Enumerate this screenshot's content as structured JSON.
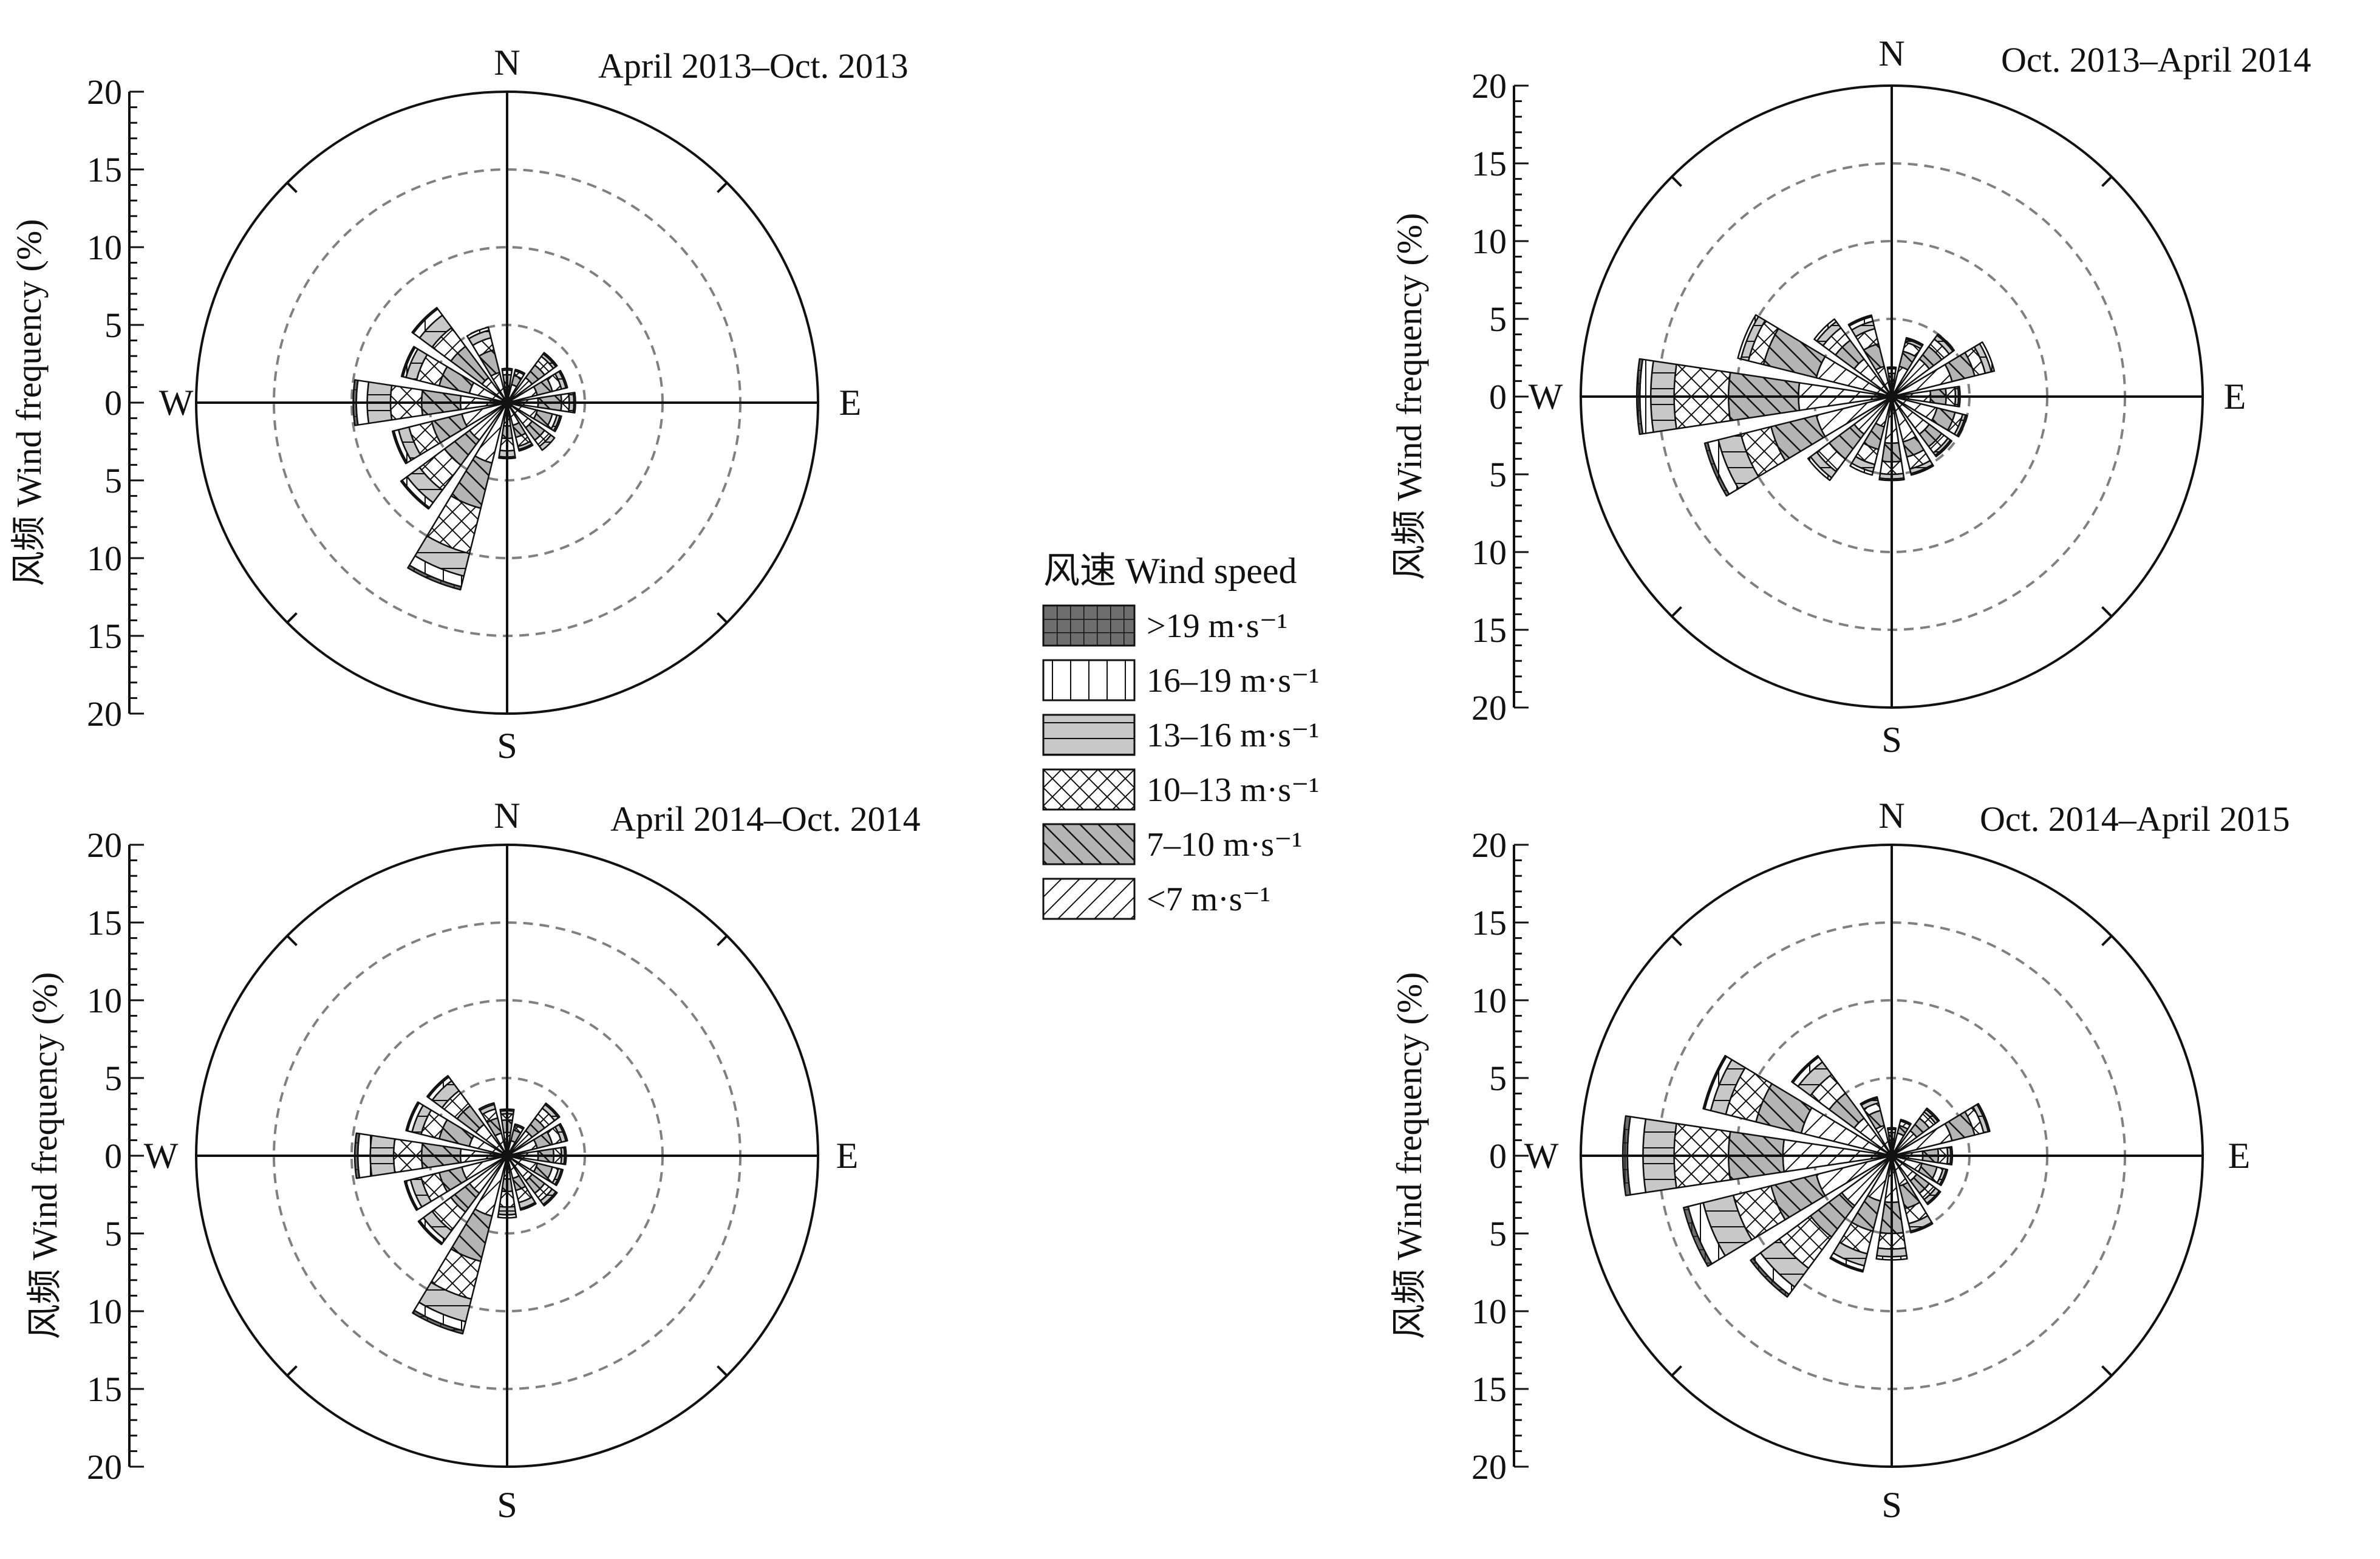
{
  "figure": {
    "legend": {
      "title": "风速 Wind speed",
      "items": [
        {
          "label": ">19 m·s⁻¹",
          "pattern": "grid",
          "color": "#6e6e6e"
        },
        {
          "label": "16–19 m·s⁻¹",
          "pattern": "vertical",
          "color": "#ffffff"
        },
        {
          "label": "13–16 m·s⁻¹",
          "pattern": "horizontal",
          "color": "#c8c8c8"
        },
        {
          "label": "10–13 m·s⁻¹",
          "pattern": "crosshatch",
          "color": "#ffffff"
        },
        {
          "label": "7–10 m·s⁻¹",
          "pattern": "backslash",
          "color": "#b4b4b4"
        },
        {
          "label": "<7 m·s⁻¹",
          "pattern": "slash",
          "color": "#ffffff"
        }
      ]
    },
    "colors": {
      "axis": "#111111",
      "grid": "#808080",
      "background": "#ffffff"
    }
  },
  "chart_data": [
    {
      "type": "wind-rose",
      "title": "April 2013–Oct. 2013",
      "ylabel": "风频 Wind frequency (%)",
      "compass": {
        "N": "N",
        "E": "E",
        "S": "S",
        "W": "W"
      },
      "r_max": 20,
      "grid_circles": [
        5,
        10,
        15
      ],
      "ticks_top": [
        "20",
        "15",
        "10",
        "5",
        "0"
      ],
      "ticks_bottom": [
        "5",
        "10",
        "15",
        "20"
      ],
      "directions": [
        0,
        22.5,
        45,
        67.5,
        90,
        112.5,
        135,
        157.5,
        180,
        202.5,
        225,
        247.5,
        270,
        292.5,
        315,
        337.5
      ],
      "speed_classes": [
        "<7",
        "7–10",
        "10–13",
        "13–16",
        "16–19",
        ">19"
      ],
      "frequencies": [
        [
          1.0,
          0.8,
          0.3,
          0.1,
          0.0,
          0.0
        ],
        [
          1.2,
          0.6,
          0.3,
          0.1,
          0.0,
          0.0
        ],
        [
          2.0,
          1.0,
          0.7,
          0.2,
          0.1,
          0.0
        ],
        [
          2.0,
          1.0,
          0.6,
          0.3,
          0.1,
          0.0
        ],
        [
          2.0,
          1.5,
          0.5,
          0.3,
          0.1,
          0.0
        ],
        [
          2.0,
          1.0,
          0.3,
          0.2,
          0.1,
          0.0
        ],
        [
          2.0,
          1.0,
          0.5,
          0.3,
          0.0,
          0.0
        ],
        [
          1.5,
          0.8,
          0.6,
          0.2,
          0.1,
          0.0
        ],
        [
          1.5,
          0.8,
          0.8,
          0.4,
          0.1,
          0.0
        ],
        [
          4.0,
          3.0,
          3.0,
          1.5,
          0.7,
          0.2
        ],
        [
          3.0,
          2.0,
          2.0,
          1.0,
          0.4,
          0.1
        ],
        [
          3.0,
          2.0,
          1.5,
          0.7,
          0.3,
          0.1
        ],
        [
          3.0,
          2.5,
          2.0,
          1.5,
          0.7,
          0.2
        ],
        [
          2.5,
          2.0,
          1.5,
          0.7,
          0.2,
          0.1
        ],
        [
          2.0,
          2.5,
          1.5,
          1.0,
          0.5,
          0.1
        ],
        [
          2.0,
          1.5,
          0.8,
          0.5,
          0.2,
          0.0
        ]
      ]
    },
    {
      "type": "wind-rose",
      "title": "Oct. 2013–April 2014",
      "ylabel": "风频 Wind frequency (%)",
      "compass": {
        "N": "N",
        "E": "E",
        "S": "S",
        "W": "W"
      },
      "r_max": 20,
      "grid_circles": [
        5,
        10,
        15
      ],
      "ticks_top": [
        "20",
        "15",
        "10",
        "5",
        "0"
      ],
      "ticks_bottom": [
        "5",
        "10",
        "15",
        "20"
      ],
      "directions": [
        0,
        22.5,
        45,
        67.5,
        90,
        112.5,
        135,
        157.5,
        180,
        202.5,
        225,
        247.5,
        270,
        292.5,
        315,
        337.5
      ],
      "speed_classes": [
        "<7",
        "7–10",
        "10–13",
        "13–16",
        "16–19",
        ">19"
      ],
      "frequencies": [
        [
          1.0,
          0.5,
          0.3,
          0.1,
          0.0,
          0.0
        ],
        [
          2.0,
          1.0,
          0.6,
          0.2,
          0.1,
          0.0
        ],
        [
          3.0,
          1.0,
          0.6,
          0.3,
          0.1,
          0.0
        ],
        [
          4.0,
          1.5,
          0.7,
          0.4,
          0.2,
          0.0
        ],
        [
          2.5,
          1.0,
          0.6,
          0.2,
          0.1,
          0.0
        ],
        [
          3.0,
          1.2,
          0.5,
          0.2,
          0.1,
          0.0
        ],
        [
          3.0,
          1.0,
          0.5,
          0.2,
          0.1,
          0.0
        ],
        [
          3.0,
          1.0,
          0.8,
          0.3,
          0.1,
          0.0
        ],
        [
          3.0,
          1.2,
          0.8,
          0.3,
          0.1,
          0.0
        ],
        [
          2.0,
          1.5,
          1.0,
          0.5,
          0.2,
          0.0
        ],
        [
          3.0,
          2.0,
          1.0,
          0.5,
          0.2,
          0.0
        ],
        [
          5.0,
          3.0,
          2.0,
          1.5,
          0.7,
          0.2
        ],
        [
          6.0,
          4.5,
          3.5,
          1.5,
          0.7,
          0.2
        ],
        [
          5.0,
          3.5,
          1.0,
          0.5,
          0.2,
          0.0
        ],
        [
          3.0,
          1.5,
          1.0,
          0.5,
          0.2,
          0.0
        ],
        [
          2.0,
          1.5,
          1.0,
          0.5,
          0.3,
          0.1
        ]
      ]
    },
    {
      "type": "wind-rose",
      "title": "April 2014–Oct. 2014",
      "ylabel": "风频 Wind frequency (%)",
      "compass": {
        "N": "N",
        "E": "E",
        "S": "S",
        "W": "W"
      },
      "r_max": 20,
      "grid_circles": [
        5,
        10,
        15
      ],
      "ticks_top": [
        "20",
        "15",
        "10",
        "5",
        "0"
      ],
      "ticks_bottom": [
        "5",
        "10",
        "15",
        "20"
      ],
      "directions": [
        0,
        22.5,
        45,
        67.5,
        90,
        112.5,
        135,
        157.5,
        180,
        202.5,
        225,
        247.5,
        270,
        292.5,
        315,
        337.5
      ],
      "speed_classes": [
        "<7",
        "7–10",
        "10–13",
        "13–16",
        "16–19",
        ">19"
      ],
      "frequencies": [
        [
          1.5,
          0.8,
          0.4,
          0.2,
          0.1,
          0.0
        ],
        [
          1.0,
          0.7,
          0.3,
          0.1,
          0.0,
          0.0
        ],
        [
          2.0,
          1.0,
          0.8,
          0.3,
          0.1,
          0.0
        ],
        [
          2.0,
          1.0,
          0.6,
          0.3,
          0.1,
          0.0
        ],
        [
          2.0,
          1.0,
          0.5,
          0.2,
          0.1,
          0.0
        ],
        [
          2.0,
          1.0,
          0.4,
          0.2,
          0.1,
          0.0
        ],
        [
          2.0,
          1.0,
          0.6,
          0.3,
          0.1,
          0.0
        ],
        [
          1.5,
          0.8,
          0.8,
          0.4,
          0.1,
          0.0
        ],
        [
          1.5,
          0.8,
          1.0,
          0.5,
          0.2,
          0.0
        ],
        [
          4.0,
          3.0,
          2.5,
          1.5,
          0.6,
          0.2
        ],
        [
          3.0,
          1.5,
          1.5,
          0.7,
          0.3,
          0.1
        ],
        [
          3.0,
          1.5,
          1.2,
          0.7,
          0.3,
          0.1
        ],
        [
          3.0,
          2.5,
          1.8,
          1.5,
          0.8,
          0.2
        ],
        [
          2.5,
          2.0,
          1.2,
          0.6,
          0.3,
          0.1
        ],
        [
          2.5,
          1.5,
          1.2,
          0.8,
          0.3,
          0.1
        ],
        [
          1.5,
          1.0,
          0.6,
          0.3,
          0.1,
          0.0
        ]
      ]
    },
    {
      "type": "wind-rose",
      "title": "Oct. 2014–April 2015",
      "ylabel": "风频 Wind frequency (%)",
      "compass": {
        "N": "N",
        "E": "E",
        "S": "S",
        "W": "W"
      },
      "r_max": 20,
      "grid_circles": [
        5,
        10,
        15
      ],
      "ticks_top": [
        "20",
        "15",
        "10",
        "5",
        "0"
      ],
      "ticks_bottom": [
        "5",
        "10",
        "15",
        "20"
      ],
      "directions": [
        0,
        22.5,
        45,
        67.5,
        90,
        112.5,
        135,
        157.5,
        180,
        202.5,
        225,
        247.5,
        270,
        292.5,
        315,
        337.5
      ],
      "speed_classes": [
        "<7",
        "7–10",
        "10–13",
        "13–16",
        "16–19",
        ">19"
      ],
      "frequencies": [
        [
          1.0,
          0.5,
          0.2,
          0.1,
          0.0,
          0.0
        ],
        [
          1.5,
          0.5,
          0.3,
          0.1,
          0.0,
          0.0
        ],
        [
          2.0,
          1.0,
          0.5,
          0.2,
          0.1,
          0.0
        ],
        [
          4.0,
          1.5,
          0.6,
          0.3,
          0.1,
          0.0
        ],
        [
          2.0,
          1.0,
          0.6,
          0.2,
          0.1,
          0.0
        ],
        [
          2.0,
          1.0,
          0.4,
          0.2,
          0.1,
          0.0
        ],
        [
          2.0,
          1.0,
          0.5,
          0.3,
          0.1,
          0.0
        ],
        [
          2.0,
          1.5,
          1.0,
          0.5,
          0.1,
          0.0
        ],
        [
          3.0,
          2.0,
          1.0,
          0.5,
          0.2,
          0.0
        ],
        [
          3.0,
          2.0,
          1.5,
          0.8,
          0.3,
          0.1
        ],
        [
          4.0,
          2.5,
          2.5,
          1.5,
          0.6,
          0.2
        ],
        [
          5.0,
          3.0,
          2.5,
          2.0,
          1.0,
          0.3
        ],
        [
          7.0,
          3.5,
          3.5,
          2.0,
          1.0,
          0.3
        ],
        [
          6.0,
          3.0,
          2.0,
          1.0,
          0.4,
          0.1
        ],
        [
          3.0,
          2.0,
          1.5,
          1.0,
          0.4,
          0.1
        ],
        [
          2.0,
          1.0,
          0.5,
          0.3,
          0.1,
          0.0
        ]
      ]
    }
  ]
}
